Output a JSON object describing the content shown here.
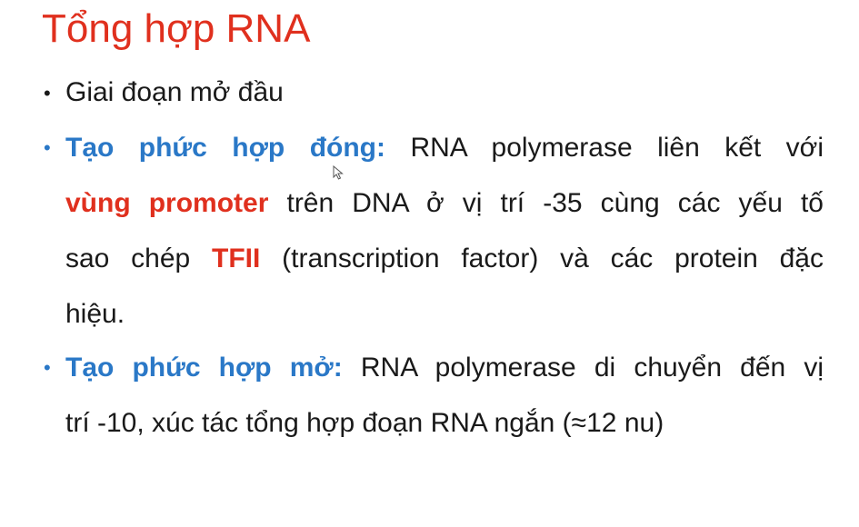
{
  "slide": {
    "title": "Tổng hợp RNA",
    "bullet_char": "•",
    "intro": {
      "text": "Giai đoạn mở đầu"
    },
    "closed_complex": {
      "label": "Tạo phức hợp đóng:",
      "line1_text": "RNA polymerase liên kết với",
      "highlight_promoter": "vùng promoter",
      "line2_text": "trên DNA ở vị trí -35 cùng các yếu tố",
      "line3_pre": "sao chép",
      "highlight_tfii": "TFII",
      "line3_post": "(transcription factor) và các  protein đặc",
      "line4_text": "hiệu."
    },
    "open_complex": {
      "label": "Tạo phức hợp mở:",
      "line1_text": "RNA polymerase di chuyển đến vị",
      "line2_text": "trí -10, xúc tác tổng hợp đoạn RNA ngắn (≈12  nu)"
    }
  },
  "colors": {
    "title": "#e0301e",
    "keyword_blue": "#2a78c7",
    "keyword_red": "#e0301e",
    "body_text": "#1a1a1a"
  },
  "icons": {
    "cursor": "mouse-pointer-icon"
  }
}
